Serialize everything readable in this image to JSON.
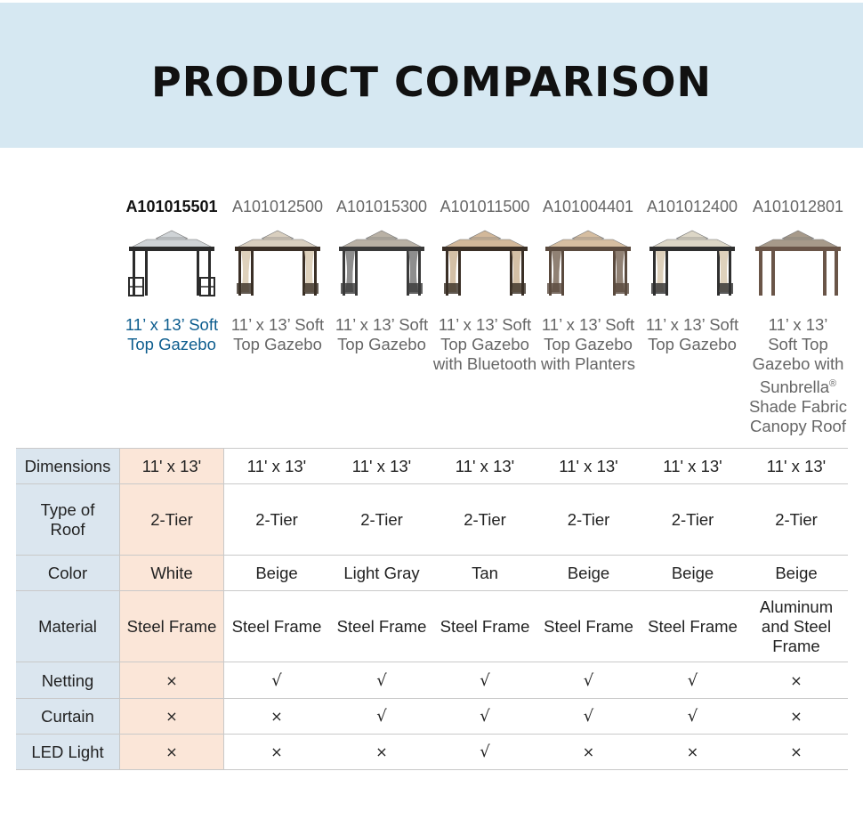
{
  "title": "PRODUCT COMPARISON",
  "products": [
    {
      "sku": "A101015501",
      "name": "11’ x 13’ Soft Top Gazebo",
      "roof": "#cfd3d6",
      "frame": "#2b2b2b",
      "curtain": "none",
      "active": true
    },
    {
      "sku": "A101012500",
      "name": "11’ x 13’ Soft Top Gazebo",
      "roof": "#d9cfbf",
      "frame": "#3a2f26",
      "curtain": "#d8c9b0",
      "active": false
    },
    {
      "sku": "A101015300",
      "name": "11’ x 13’ Soft Top Gazebo",
      "roof": "#b9b1a5",
      "frame": "#3a3a3a",
      "curtain": "#7a7a7a",
      "active": false
    },
    {
      "sku": "A101011500",
      "name": "11’ x 13’ Soft Top Gazebo with Bluetooth",
      "roof": "#d2b89a",
      "frame": "#3a2f26",
      "curtain": "#cdb596",
      "active": false
    },
    {
      "sku": "A101004401",
      "name": "11’ x 13’ Soft Top Gazebo with Planters",
      "roof": "#d6bea1",
      "frame": "#5a4a3e",
      "curtain": "#7d6b5c",
      "active": false
    },
    {
      "sku": "A101012400",
      "name": "11’ x 13’ Soft Top Gazebo",
      "roof": "#dcd6c6",
      "frame": "#2f2f2f",
      "curtain": "#d8c9b0",
      "active": false
    },
    {
      "sku": "A101012801",
      "name_lines": [
        "11’ x 13’",
        "Soft Top",
        "Gazebo with",
        "Sunbrella",
        "Shade Fabric",
        "Canopy Roof"
      ],
      "name": "11’ x 13’ Soft Top Gazebo with Sunbrella® Shade Fabric Canopy Roof",
      "roof": "#a79a8a",
      "frame": "#6a5548",
      "curtain": "none",
      "active": false
    }
  ],
  "rows": [
    {
      "label": "Dimensions",
      "values": [
        "11' x 13'",
        "11' x 13'",
        "11' x 13'",
        "11' x 13'",
        "11' x 13'",
        "11' x 13'",
        "11' x 13'"
      ]
    },
    {
      "label": "Type of Roof",
      "values": [
        "2-Tier",
        "2-Tier",
        "2-Tier",
        "2-Tier",
        "2-Tier",
        "2-Tier",
        "2-Tier"
      ]
    },
    {
      "label": "Color",
      "values": [
        "White",
        "Beige",
        "Light Gray",
        "Tan",
        "Beige",
        "Beige",
        "Beige"
      ]
    },
    {
      "label": "Material",
      "values": [
        "Steel Frame",
        "Steel Frame",
        "Steel Frame",
        "Steel Frame",
        "Steel Frame",
        "Steel Frame",
        "Aluminum and Steel Frame"
      ]
    },
    {
      "label": "Netting",
      "values": [
        "×",
        "√",
        "√",
        "√",
        "√",
        "√",
        "×"
      ]
    },
    {
      "label": "Curtain",
      "values": [
        "×",
        "×",
        "√",
        "√",
        "√",
        "√",
        "×"
      ]
    },
    {
      "label": "LED Light",
      "values": [
        "×",
        "×",
        "×",
        "√",
        "×",
        "×",
        "×"
      ]
    }
  ]
}
